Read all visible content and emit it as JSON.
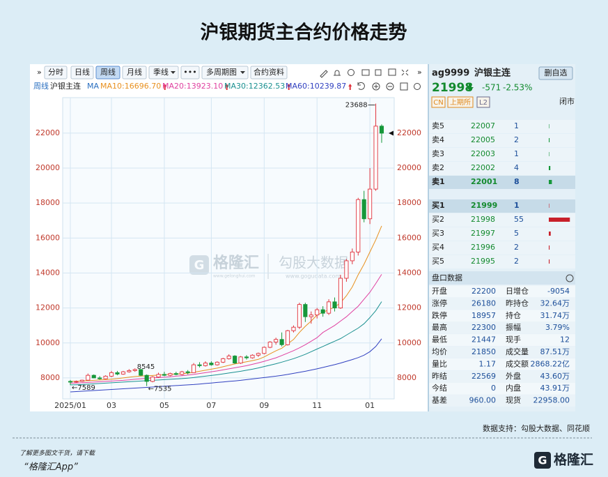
{
  "header": {
    "title": "沪银期货主合约价格走势"
  },
  "toolbar": {
    "buttons": [
      "分时",
      "日线",
      "周线",
      "月线",
      "季线",
      "•••",
      "多周期图",
      "合约资料"
    ],
    "period": "周线",
    "contract": "沪银主连",
    "ma": "MA"
  },
  "chart_data": {
    "type": "candlestick",
    "categories": [
      "2025/01",
      null,
      null,
      null,
      null,
      null,
      null,
      "03",
      null,
      null,
      null,
      null,
      null,
      null,
      null,
      null,
      "05",
      null,
      null,
      null,
      null,
      null,
      null,
      null,
      "07",
      null,
      null,
      null,
      null,
      null,
      null,
      null,
      null,
      "09",
      null,
      null,
      null,
      null,
      null,
      null,
      null,
      null,
      "11",
      null,
      null,
      null,
      null,
      null,
      null,
      null,
      null,
      "01",
      null,
      null
    ],
    "open": [
      7800,
      7760,
      7800,
      7870,
      8150,
      8000,
      7950,
      8100,
      8300,
      8220,
      8350,
      8420,
      8480,
      8150,
      7800,
      8050,
      8200,
      8150,
      8250,
      8200,
      8350,
      8300,
      8750,
      8700,
      8850,
      8750,
      8900,
      9100,
      9250,
      8850,
      9200,
      9150,
      9300,
      9400,
      9750,
      10050,
      10200,
      9900,
      10700,
      10900,
      12200,
      11500,
      11600,
      11900,
      11700,
      12350,
      12000,
      13700,
      14700,
      15200,
      18200,
      17100,
      18800,
      22400
    ],
    "high": [
      7880,
      7850,
      7900,
      8250,
      8200,
      8100,
      8150,
      8400,
      8400,
      8400,
      8500,
      8545,
      8500,
      8200,
      8100,
      8300,
      8350,
      8300,
      8350,
      8400,
      8450,
      8850,
      8900,
      8950,
      8950,
      8950,
      9150,
      9350,
      9300,
      9250,
      9300,
      9350,
      9450,
      9800,
      10100,
      10300,
      10600,
      10750,
      11000,
      12300,
      12300,
      11800,
      12000,
      12100,
      12500,
      12600,
      13900,
      14800,
      15400,
      18300,
      18700,
      20000,
      23688,
      22500
    ],
    "low": [
      7589,
      7720,
      7760,
      7850,
      7980,
      7900,
      7920,
      8050,
      8150,
      8180,
      8300,
      8350,
      8100,
      7535,
      7750,
      8000,
      8100,
      8100,
      8150,
      8150,
      8200,
      8280,
      8600,
      8650,
      8700,
      8700,
      8850,
      9050,
      8800,
      8800,
      9050,
      9100,
      9200,
      9350,
      9700,
      9900,
      9800,
      9850,
      10600,
      10800,
      11200,
      11100,
      11400,
      11500,
      11600,
      11800,
      11950,
      13500,
      14500,
      15000,
      16900,
      16800,
      18700,
      21447
    ],
    "close": [
      7760,
      7800,
      7870,
      8150,
      8000,
      7950,
      8100,
      8300,
      8220,
      8350,
      8420,
      8480,
      8150,
      7800,
      8050,
      8200,
      8150,
      8250,
      8200,
      8350,
      8300,
      8750,
      8700,
      8850,
      8750,
      8900,
      9100,
      9250,
      8850,
      9200,
      9150,
      9300,
      9400,
      9750,
      10050,
      10200,
      9900,
      10700,
      10900,
      12200,
      11500,
      11600,
      11900,
      11700,
      12350,
      12000,
      13700,
      14700,
      15200,
      18200,
      17100,
      18800,
      22400,
      21998
    ],
    "up_color": "#e0303a",
    "down_color": "#16973a",
    "series": [
      {
        "name": "MA10:16696.70",
        "color": "#e8901e",
        "values": [
          7800,
          7810,
          7820,
          7840,
          7860,
          7880,
          7900,
          7930,
          7960,
          8000,
          8040,
          8080,
          8110,
          8120,
          8140,
          8160,
          8180,
          8200,
          8220,
          8240,
          8270,
          8320,
          8380,
          8440,
          8500,
          8560,
          8640,
          8720,
          8800,
          8860,
          8920,
          8990,
          9060,
          9200,
          9380,
          9550,
          9700,
          9950,
          10200,
          10600,
          10950,
          11250,
          11600,
          11750,
          11900,
          12050,
          12300,
          12700,
          13200,
          13900,
          14500,
          15200,
          15900,
          16696.7
        ]
      },
      {
        "name": "MA20:13923.10",
        "color": "#e040a0",
        "values": [
          7700,
          7710,
          7720,
          7740,
          7760,
          7780,
          7800,
          7820,
          7840,
          7860,
          7890,
          7920,
          7950,
          7980,
          8000,
          8020,
          8040,
          8070,
          8100,
          8130,
          8160,
          8200,
          8250,
          8300,
          8350,
          8400,
          8460,
          8520,
          8580,
          8640,
          8700,
          8780,
          8860,
          8950,
          9050,
          9150,
          9280,
          9420,
          9560,
          9720,
          9900,
          10100,
          10300,
          10600,
          10800,
          11000,
          11250,
          11500,
          11800,
          12100,
          12500,
          12900,
          13400,
          13923.1
        ]
      },
      {
        "name": "MA30:12362.53",
        "color": "#1a9090",
        "values": [
          7600,
          7610,
          7620,
          7640,
          7660,
          7680,
          7700,
          7720,
          7740,
          7760,
          7780,
          7800,
          7820,
          7840,
          7860,
          7880,
          7900,
          7920,
          7940,
          7960,
          7990,
          8020,
          8060,
          8100,
          8140,
          8180,
          8230,
          8280,
          8330,
          8380,
          8440,
          8500,
          8570,
          8650,
          8730,
          8810,
          8900,
          9000,
          9100,
          9220,
          9350,
          9500,
          9650,
          9800,
          9950,
          10100,
          10250,
          10450,
          10650,
          10850,
          11100,
          11450,
          11850,
          12362.53
        ]
      },
      {
        "name": "MA60:10239.87",
        "color": "#3040c0",
        "values": [
          7200,
          7220,
          7240,
          7260,
          7280,
          7300,
          7320,
          7340,
          7360,
          7380,
          7400,
          7420,
          7440,
          7460,
          7480,
          7500,
          7520,
          7540,
          7560,
          7580,
          7600,
          7620,
          7650,
          7680,
          7710,
          7740,
          7770,
          7800,
          7830,
          7860,
          7900,
          7940,
          7980,
          8020,
          8060,
          8100,
          8150,
          8200,
          8260,
          8320,
          8380,
          8450,
          8520,
          8600,
          8680,
          8760,
          8850,
          8950,
          9050,
          9160,
          9300,
          9500,
          9800,
          10239.87
        ]
      }
    ],
    "annotations": [
      "23688",
      "8545",
      "←7589",
      "←7535"
    ],
    "ylim": [
      6800,
      24030
    ],
    "yticks": [
      8000,
      10000,
      12000,
      14000,
      16000,
      18000,
      20000,
      22000
    ],
    "grid": true
  },
  "quote": {
    "code": "ag9999",
    "name": "沪银主连",
    "button": "删自选",
    "price": 21998,
    "change": -571,
    "change_pct": "-2.53%",
    "tags": [
      "CN",
      "上期所",
      "L2"
    ],
    "status": "闭市"
  },
  "orderbook": {
    "asks": [
      {
        "label": "卖5",
        "price": 22007,
        "qty": 1
      },
      {
        "label": "卖4",
        "price": 22005,
        "qty": 2
      },
      {
        "label": "卖3",
        "price": 22003,
        "qty": 1
      },
      {
        "label": "卖2",
        "price": 22002,
        "qty": 4
      },
      {
        "label": "卖1",
        "price": 22001,
        "qty": 8
      }
    ],
    "bids": [
      {
        "label": "买1",
        "price": 21999,
        "qty": 1
      },
      {
        "label": "买2",
        "price": 21998,
        "qty": 55
      },
      {
        "label": "买3",
        "price": 21997,
        "qty": 5
      },
      {
        "label": "买4",
        "price": 21996,
        "qty": 2
      },
      {
        "label": "买5",
        "price": 21995,
        "qty": 2
      }
    ]
  },
  "stats": {
    "title": "盘口数据",
    "rows": [
      [
        "开盘",
        22200,
        "日增仓",
        -9054
      ],
      [
        "涨停",
        26180,
        "昨持仓",
        "32.64万"
      ],
      [
        "跌停",
        18957,
        "持仓",
        "31.74万"
      ],
      [
        "最高",
        22300,
        "振幅",
        "3.79%"
      ],
      [
        "最低",
        21447,
        "现手",
        12
      ],
      [
        "均价",
        21850,
        "成交量",
        "87.51万"
      ],
      [
        "量比",
        1.17,
        "成交额",
        "2868.22亿"
      ],
      [
        "昨结",
        22569,
        "外盘",
        "43.60万"
      ],
      [
        "今结",
        0,
        "内盘",
        "43.91万"
      ],
      [
        "基差",
        "960.00",
        "现货",
        "22958.00"
      ]
    ]
  },
  "watermark": {
    "brand": "格隆汇",
    "brand_sub": "www.gelonghui.com",
    "data": "勾股大数据",
    "data_sub": "www.gogudata.com"
  },
  "footer": {
    "source": "数据支持：勾股大数据、同花顺",
    "promo": "了解更多图文干货，请下载",
    "app": "“格隆汇App”",
    "logo": "格隆汇"
  }
}
